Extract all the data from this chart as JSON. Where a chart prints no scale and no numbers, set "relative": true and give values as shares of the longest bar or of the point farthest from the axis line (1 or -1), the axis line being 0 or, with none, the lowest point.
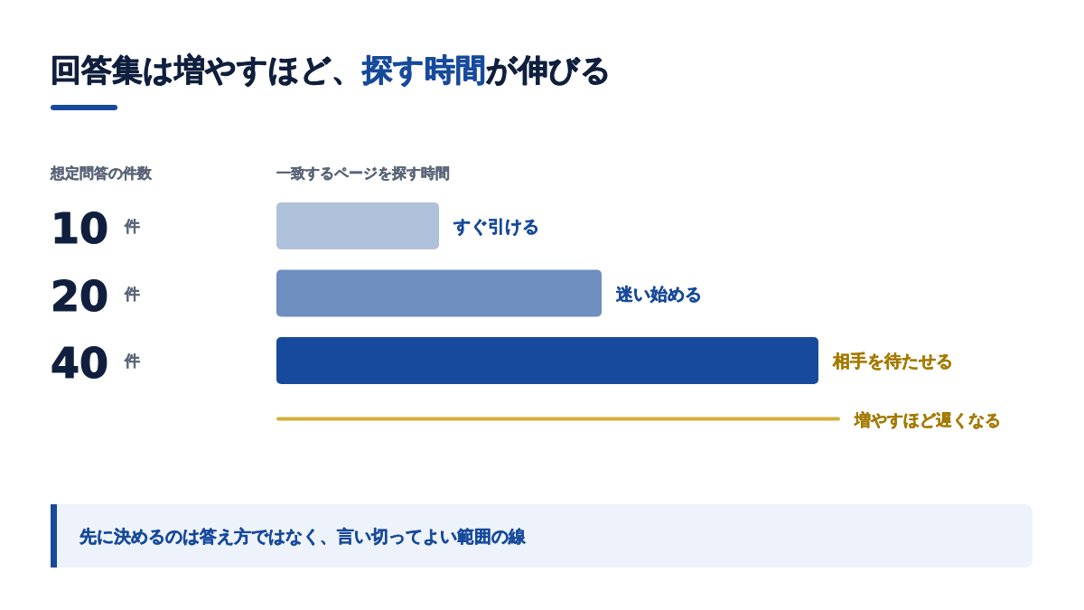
{
  "chart_data": {
    "type": "bar",
    "orientation": "horizontal",
    "relative": true,
    "title": "回答集は増やすほど、**探す時間**が伸びる",
    "xlabel": "一致するページを探す時間",
    "ylabel": "想定問答の件数",
    "categories": [
      "10 件",
      "20 件",
      "40 件"
    ],
    "values": [
      0.3,
      0.6,
      1
    ],
    "colors": [
      "#b0c1dc",
      "#6e8fc0",
      "#174a9c"
    ],
    "annotations": [
      {
        "text": "すぐ引ける",
        "x": 0.3,
        "y": "10 件"
      },
      {
        "text": "迷い始める",
        "x": 0.6,
        "y": "20 件"
      },
      {
        "text": "相手を待たせる",
        "x": 1,
        "y": "40 件"
      },
      "増やすほど遅くなる",
      "先に決めるのは答え方ではなく、言い切ってよい範囲の線"
    ]
  }
}
